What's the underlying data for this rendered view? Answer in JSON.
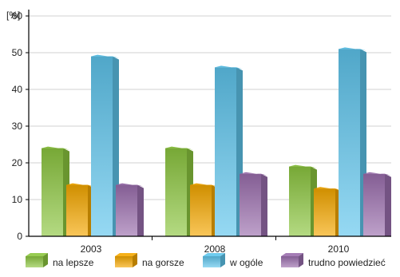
{
  "chart_data": {
    "type": "bar",
    "style": "3d",
    "y_unit_label": "[%]",
    "categories": [
      "2003",
      "2008",
      "2010"
    ],
    "ylim": [
      0,
      60
    ],
    "yticks": [
      0,
      10,
      20,
      30,
      40,
      50,
      60
    ],
    "grid": true,
    "legend_position": "bottom",
    "series": [
      {
        "name": "na lepsze",
        "values": [
          24,
          24,
          19
        ],
        "color": "#8cc63f"
      },
      {
        "name": "na gorsze",
        "values": [
          14,
          14,
          13
        ],
        "color": "#f5a800"
      },
      {
        "name": "w ogóle",
        "values": [
          49,
          46,
          51
        ],
        "color": "#5ec5ec"
      },
      {
        "name": "trudno powiedzieć",
        "values": [
          14,
          17,
          17
        ],
        "color": "#9b6fae"
      }
    ]
  }
}
